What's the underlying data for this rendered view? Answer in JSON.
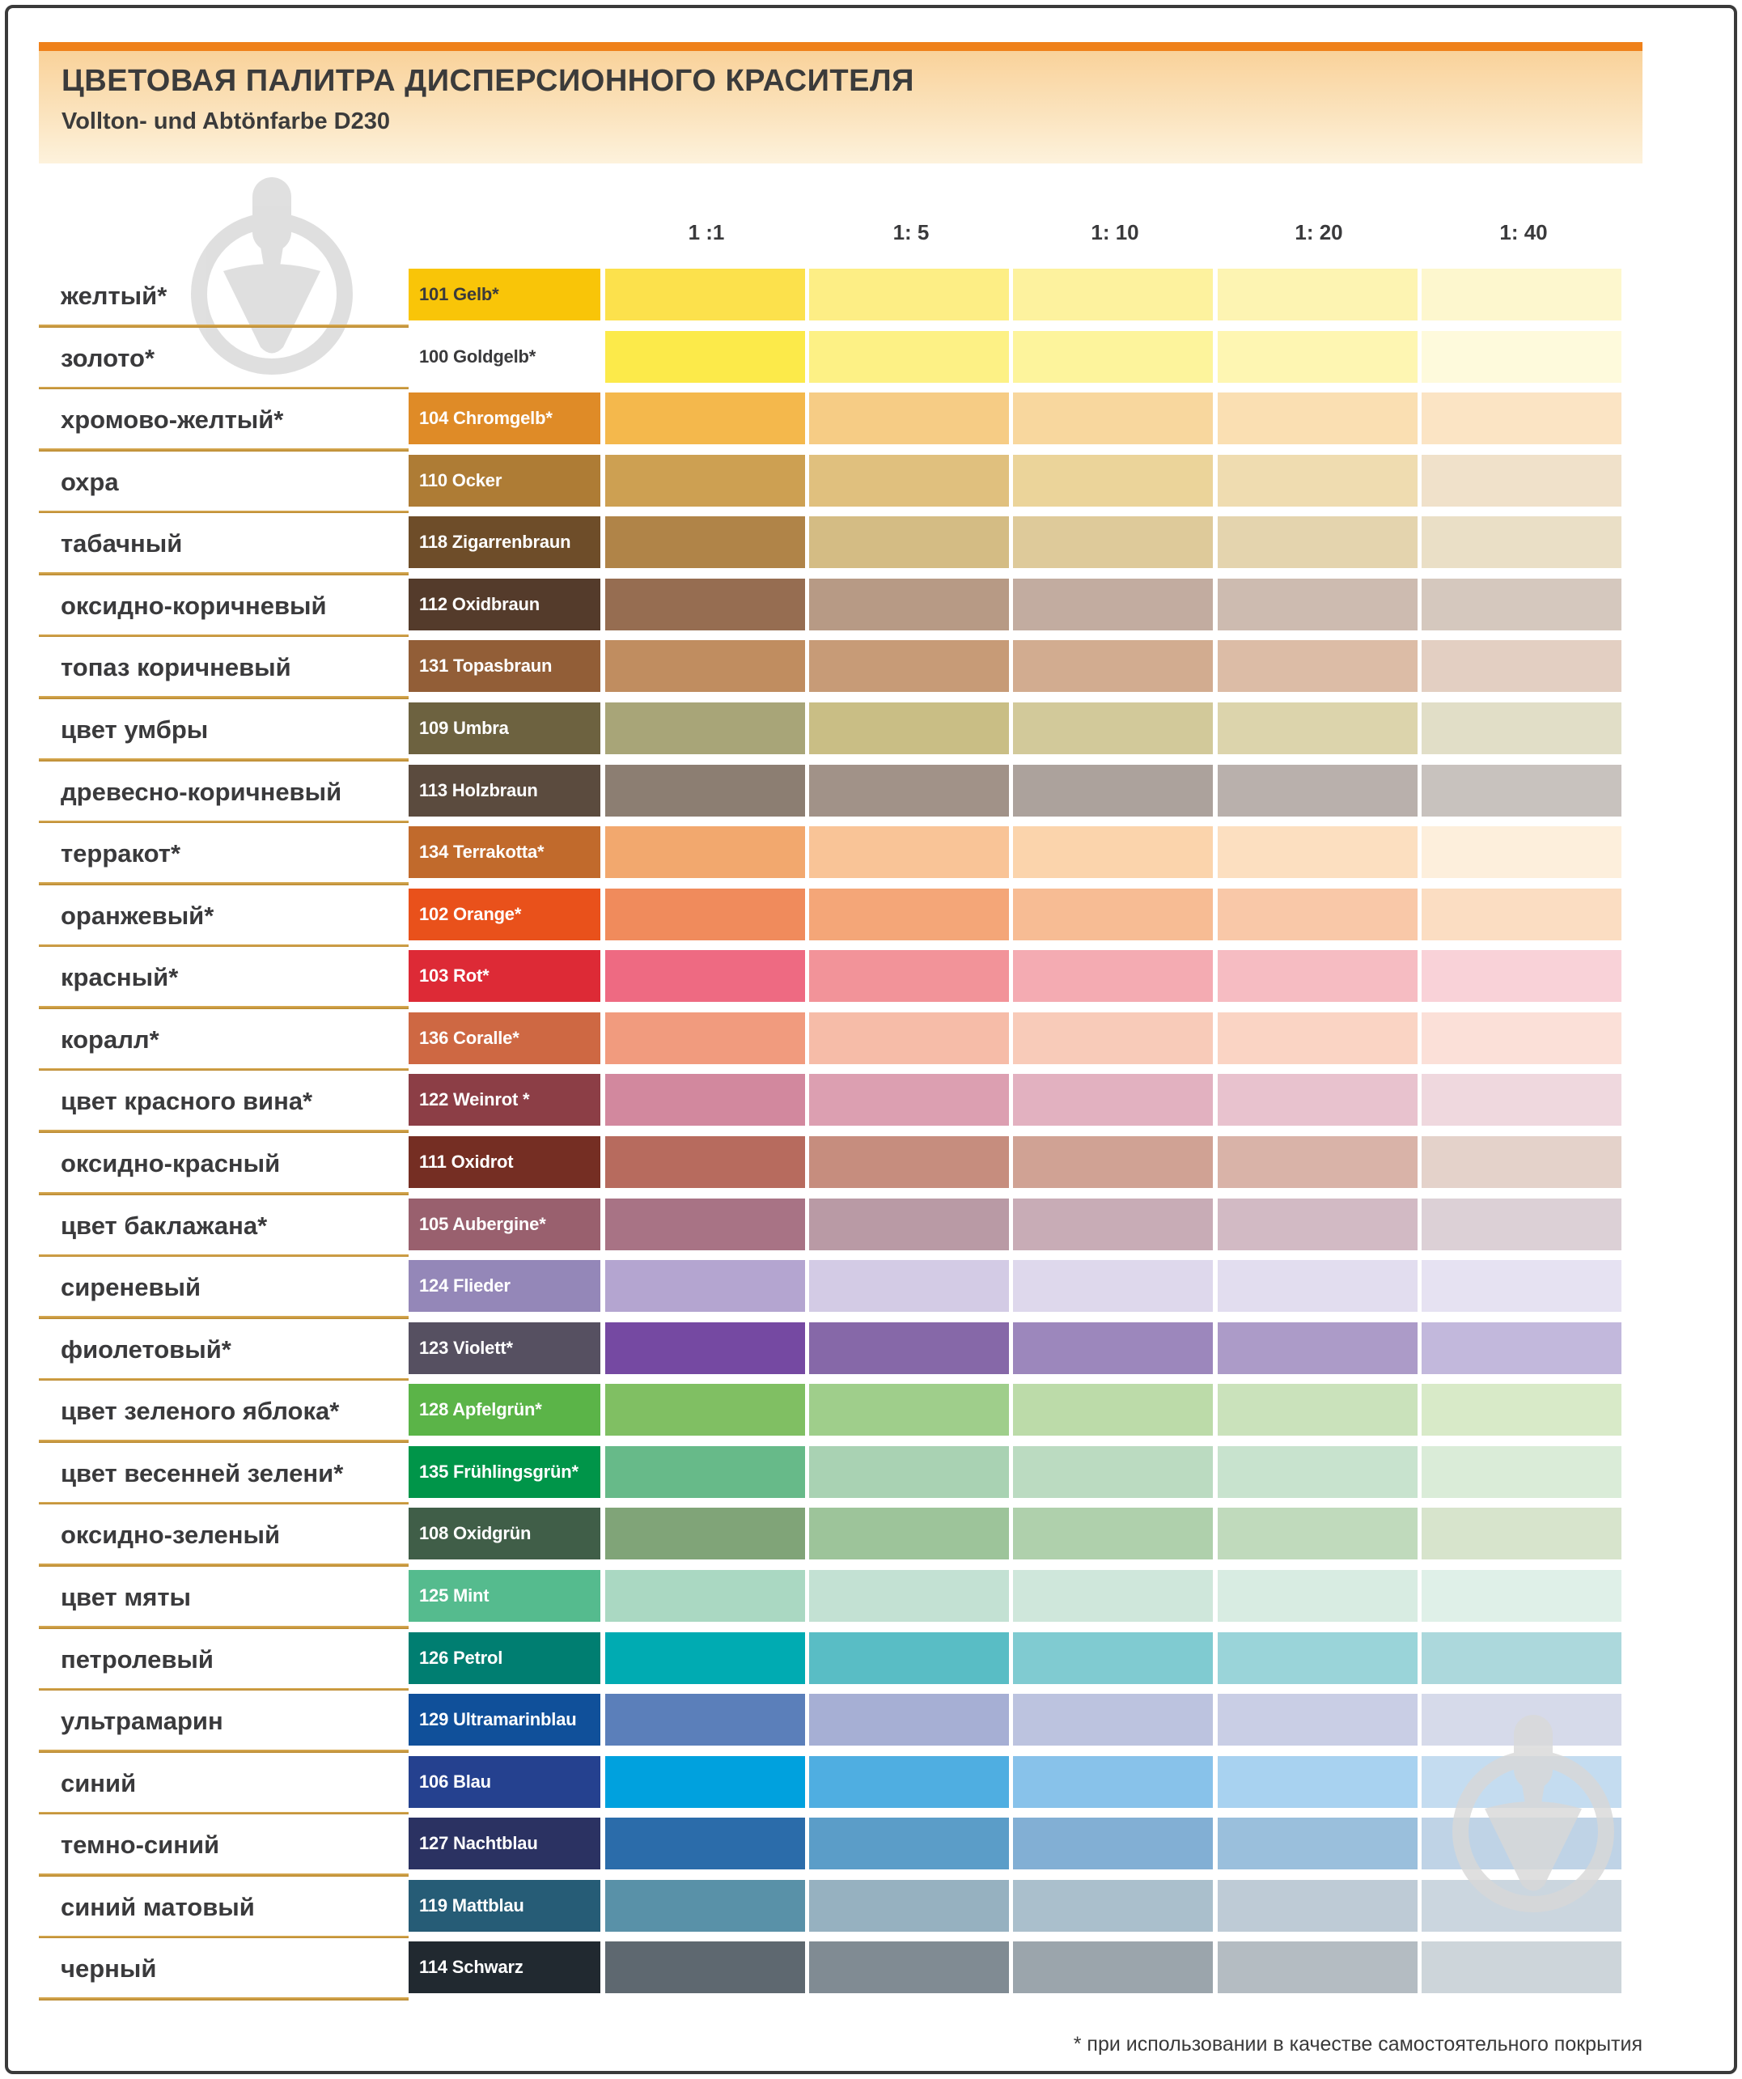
{
  "header": {
    "title": "ЦВЕТОВАЯ ПАЛИТРА ДИСПЕРСИОННОГО КРАСИТЕЛЯ",
    "subtitle": "Vollton- und Abtönfarbe D230",
    "accent_bar_color": "#ef811a"
  },
  "footnote": "* при использовании в качестве самостоятельного покрытия",
  "separator_color": "#c9953a",
  "watermark_icon": "trowel-in-circle",
  "chart_data": {
    "type": "table",
    "title": "ЦВЕТОВАЯ ПАЛИТРА ДИСПЕРСИОННОГО КРАСИТЕЛЯ",
    "subtitle": "Vollton- und Abtönfarbe D230",
    "dilution_columns": [
      "1 :1",
      "1: 5",
      "1: 10",
      "1: 20",
      "1: 40"
    ],
    "legend_position": "top",
    "rows": [
      {
        "ru": "желтый*",
        "de": "101 Gelb*",
        "label_bg": "#f9c508",
        "label_text": "#3a3a3c",
        "swatches": [
          "#fce14c",
          "#fdee85",
          "#fdf29e",
          "#fdf4b2",
          "#fdf7ce"
        ]
      },
      {
        "ru": "золото*",
        "de": "100 Goldgelb*",
        "label_bg": "#ffffff",
        "label_text": "#3a3a3c",
        "swatches": [
          "#fcea4a",
          "#fdf185",
          "#fdf49c",
          "#fef6b2",
          "#fefadc"
        ]
      },
      {
        "ru": "хромово-желтый*",
        "de": "104 Chromgelb*",
        "label_bg": "#df8b27",
        "label_text": "#ffffff",
        "swatches": [
          "#f4b84c",
          "#f6cc85",
          "#f8d79e",
          "#fadfb2",
          "#fbe4c4"
        ]
      },
      {
        "ru": "охра",
        "de": "110 Ocker",
        "label_bg": "#ae7c35",
        "label_text": "#ffffff",
        "swatches": [
          "#cda052",
          "#e0c07e",
          "#ebd49a",
          "#efdcb0",
          "#f0e1ca"
        ]
      },
      {
        "ru": "табачный",
        "de": "118 Zigarrenbraun",
        "label_bg": "#6e4d29",
        "label_text": "#ffffff",
        "swatches": [
          "#b08448",
          "#d4bc84",
          "#deca9a",
          "#e4d4ae",
          "#eadfc6"
        ]
      },
      {
        "ru": "оксидно-коричневый",
        "de": "112 Oxidbraun",
        "label_bg": "#543b2b",
        "label_text": "#ffffff",
        "swatches": [
          "#966d51",
          "#b79a85",
          "#c2aca0",
          "#cdbbb0",
          "#d5c8be"
        ]
      },
      {
        "ru": "топаз коричневый",
        "de": "131 Topasbraun",
        "label_bg": "#925e37",
        "label_text": "#ffffff",
        "swatches": [
          "#c08d60",
          "#c79b77",
          "#d2ac90",
          "#dcbca6",
          "#e3cfc2"
        ]
      },
      {
        "ru": "цвет умбры",
        "de": "109 Umbra",
        "label_bg": "#6d6240",
        "label_text": "#ffffff",
        "swatches": [
          "#a8a578",
          "#c9be85",
          "#d2c99a",
          "#dcd4ac",
          "#e1dec7"
        ]
      },
      {
        "ru": "древесно-коричневый",
        "de": "113 Holzbraun",
        "label_bg": "#5b4b3e",
        "label_text": "#ffffff",
        "swatches": [
          "#8c7e72",
          "#a19288",
          "#aca29c",
          "#b9b0ac",
          "#c8c2be"
        ]
      },
      {
        "ru": "терракот*",
        "de": "134 Terrakotta*",
        "label_bg": "#c16a2c",
        "label_text": "#ffffff",
        "swatches": [
          "#f2a86e",
          "#f9c497",
          "#fbd4ac",
          "#fcdfc0",
          "#fdefdc"
        ]
      },
      {
        "ru": "оранжевый*",
        "de": "102 Orange*",
        "label_bg": "#e9511b",
        "label_text": "#ffffff",
        "swatches": [
          "#f08b5c",
          "#f4a678",
          "#f7bc94",
          "#f9c8a8",
          "#fbddc2"
        ]
      },
      {
        "ru": "красный*",
        "de": "103 Rot*",
        "label_bg": "#dd2a36",
        "label_text": "#ffffff",
        "swatches": [
          "#ee6a82",
          "#f29399",
          "#f4abb2",
          "#f6bcc2",
          "#f9d2d8"
        ]
      },
      {
        "ru": "коралл*",
        "de": "136 Coralle*",
        "label_bg": "#ce6843",
        "label_text": "#ffffff",
        "swatches": [
          "#f19b7e",
          "#f6bca8",
          "#f8cbb9",
          "#fad4c4",
          "#fbe0d8"
        ]
      },
      {
        "ru": "цвет красного вина*",
        "de": "122 Weinrot *",
        "label_bg": "#8c3e46",
        "label_text": "#ffffff",
        "swatches": [
          "#d2889e",
          "#dc9fb1",
          "#e2b1c0",
          "#e8c2ce",
          "#efd8de"
        ]
      },
      {
        "ru": "оксидно-красный",
        "de": "111 Oxidrot",
        "label_bg": "#752e23",
        "label_text": "#ffffff",
        "swatches": [
          "#b76b5e",
          "#c68d7e",
          "#d0a294",
          "#d9b3a8",
          "#e4d2ca"
        ]
      },
      {
        "ru": "цвет баклажана*",
        "de": "105 Aubergine*",
        "label_bg": "#99606e",
        "label_text": "#ffffff",
        "swatches": [
          "#a87385",
          "#b99aa5",
          "#c8acb6",
          "#d2bac4",
          "#dcd0d6"
        ]
      },
      {
        "ru": "сиреневый",
        "de": "124 Flieder",
        "label_bg": "#9487b8",
        "label_text": "#ffffff",
        "swatches": [
          "#b4a5d0",
          "#d3cbe5",
          "#ded8ec",
          "#e2ddef",
          "#e6e2f2"
        ]
      },
      {
        "ru": "фиолетовый*",
        "de": "123 Violett*",
        "label_bg": "#565061",
        "label_text": "#ffffff",
        "swatches": [
          "#7549a2",
          "#8668a8",
          "#9c87bc",
          "#ac9bc8",
          "#c2b8dc"
        ]
      },
      {
        "ru": "цвет зеленого яблока*",
        "de": "128 Apfelgrün*",
        "label_bg": "#5bb448",
        "label_text": "#ffffff",
        "swatches": [
          "#80bf63",
          "#9fce8b",
          "#bcdba9",
          "#cae2bb",
          "#d8eac8"
        ]
      },
      {
        "ru": "цвет весенней зелени*",
        "de": "135 Frühlingsgrün*",
        "label_bg": "#009549",
        "label_text": "#ffffff",
        "swatches": [
          "#67ba89",
          "#a9d2b3",
          "#bbdbc1",
          "#c8e3ce",
          "#daecd8"
        ]
      },
      {
        "ru": "оксидно-зеленый",
        "de": "108 Oxidgrün",
        "label_bg": "#405e48",
        "label_text": "#ffffff",
        "swatches": [
          "#80a478",
          "#9dc49a",
          "#afd0ac",
          "#c0dabc",
          "#d7e4cc"
        ]
      },
      {
        "ru": "цвет мяты",
        "de": "125 Mint",
        "label_bg": "#55bb8e",
        "label_text": "#ffffff",
        "swatches": [
          "#aad8c2",
          "#c3e1d3",
          "#cfe7db",
          "#d8ece2",
          "#dff0e8"
        ]
      },
      {
        "ru": "петролевый",
        "de": "126 Petrol",
        "label_bg": "#007e71",
        "label_text": "#ffffff",
        "swatches": [
          "#00abb2",
          "#59bdc5",
          "#80cbd1",
          "#9ad4d9",
          "#acd8dc"
        ]
      },
      {
        "ru": "ультрамарин",
        "de": "129 Ultramarinblau",
        "label_bg": "#10509a",
        "label_text": "#ffffff",
        "swatches": [
          "#5b7fba",
          "#a6afd4",
          "#bcc3df",
          "#c9cee5",
          "#d6daea"
        ]
      },
      {
        "ru": "синий",
        "de": "106 Blau",
        "label_bg": "#25418f",
        "label_text": "#ffffff",
        "swatches": [
          "#00a1de",
          "#4faee1",
          "#88c2ea",
          "#a8d2f0",
          "#c4dcf0"
        ]
      },
      {
        "ru": "темно-синий",
        "de": "127 Nachtblau",
        "label_bg": "#2b3262",
        "label_text": "#ffffff",
        "swatches": [
          "#2b6caa",
          "#5b9dc8",
          "#82afd4",
          "#9abfdc",
          "#bfd3e6"
        ]
      },
      {
        "ru": "синий матовый",
        "de": "119 Mattblau",
        "label_bg": "#265c76",
        "label_text": "#ffffff",
        "swatches": [
          "#5991a8",
          "#96b1c0",
          "#aabfcc",
          "#becbd6",
          "#cbd6df"
        ]
      },
      {
        "ru": "черный",
        "de": "114 Schwarz",
        "label_bg": "#212930",
        "label_text": "#ffffff",
        "swatches": [
          "#5e6870",
          "#808b93",
          "#9ba5ac",
          "#b4bcc2",
          "#cdd5da"
        ]
      }
    ]
  }
}
